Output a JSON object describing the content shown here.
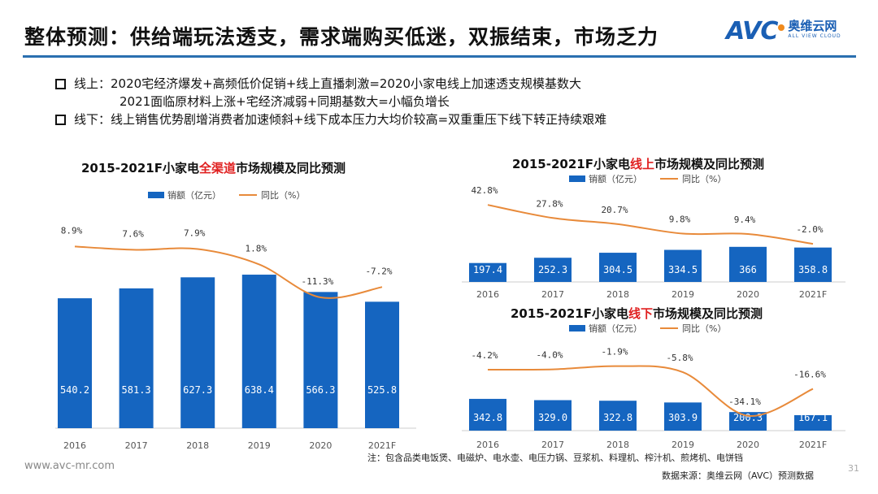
{
  "header": {
    "title": "整体预测：供给端玩法透支，需求端购买低迷，双振结束，市场乏力",
    "logo": {
      "brand": "AVC",
      "cn": "奥维云网",
      "en": "ALL VIEW CLOUD"
    }
  },
  "bullets": [
    {
      "lines": [
        "线上：2020宅经济爆发+高频低价促销+线上直播刺激=2020小家电线上加速透支规模基数大",
        "2021面临原材料上涨+宅经济减弱+同期基数大=小幅负增长"
      ]
    },
    {
      "lines": [
        "线下：线上销售优势剧增消费者加速倾斜+线下成本压力大均价较高=双重重压下线下转正持续艰难"
      ]
    }
  ],
  "colors": {
    "bar": "#1565c0",
    "line": "#e88a3a",
    "accent_red": "#e02020",
    "rule": "#2a6fb0"
  },
  "chart_data": [
    {
      "type": "bar+line",
      "title_pre": "2015-2021F小家电",
      "title_red": "全渠道",
      "title_post": "市场规模及同比预测",
      "legend": [
        "销额（亿元）",
        "同比（%）"
      ],
      "categories": [
        "2016",
        "2017",
        "2018",
        "2019",
        "2020",
        "2021F"
      ],
      "series": [
        {
          "name": "销额（亿元）",
          "type": "bar",
          "values": [
            540.2,
            581.3,
            627.3,
            638.4,
            566.3,
            525.8
          ],
          "labels": [
            "540.2",
            "581.3",
            "627.3",
            "638.4",
            "566.3",
            "525.8"
          ]
        },
        {
          "name": "同比（%）",
          "type": "line",
          "values": [
            8.9,
            7.6,
            7.9,
            1.8,
            -11.3,
            -7.2
          ],
          "labels": [
            "8.9%",
            "7.6%",
            "7.9%",
            "1.8%",
            "-11.3%",
            "-7.2%"
          ]
        }
      ]
    },
    {
      "type": "bar+line",
      "title_pre": "2015-2021F小家电",
      "title_red": "线上",
      "title_post": "市场规模及同比预测",
      "legend": [
        "销额（亿元）",
        "同比（%）"
      ],
      "categories": [
        "2016",
        "2017",
        "2018",
        "2019",
        "2020",
        "2021F"
      ],
      "series": [
        {
          "name": "销额（亿元）",
          "type": "bar",
          "values": [
            197.4,
            252.3,
            304.5,
            334.5,
            366,
            358.8
          ],
          "labels": [
            "197.4",
            "252.3",
            "304.5",
            "334.5",
            "366",
            "358.8"
          ]
        },
        {
          "name": "同比（%）",
          "type": "line",
          "values": [
            42.8,
            27.8,
            20.7,
            9.8,
            9.4,
            -2.0
          ],
          "labels": [
            "42.8%",
            "27.8%",
            "20.7%",
            "9.8%",
            "9.4%",
            "-2.0%"
          ]
        }
      ]
    },
    {
      "type": "bar+line",
      "title_pre": "2015-2021F小家电",
      "title_red": "线下",
      "title_post": "市场规模及同比预测",
      "legend": [
        "销额（亿元）",
        "同比（%）"
      ],
      "categories": [
        "2016",
        "2017",
        "2018",
        "2019",
        "2020",
        "2021F"
      ],
      "series": [
        {
          "name": "销额（亿元）",
          "type": "bar",
          "values": [
            342.8,
            329.0,
            322.8,
            303.9,
            200.3,
            167.1
          ],
          "labels": [
            "342.8",
            "329.0",
            "322.8",
            "303.9",
            "200.3",
            "167.1"
          ]
        },
        {
          "name": "同比（%）",
          "type": "line",
          "values": [
            -4.2,
            -4.0,
            -1.9,
            -5.8,
            -34.1,
            -16.6
          ],
          "labels": [
            "-4.2%",
            "-4.0%",
            "-1.9%",
            "-5.8%",
            "-34.1%",
            "-16.6%"
          ]
        }
      ]
    }
  ],
  "footer": {
    "note": "注：包含品类电饭煲、电磁炉、电水壶、电压力锅、豆浆机、料理机、榨汁机、煎烤机、电饼铛",
    "source": "数据来源：奥维云网（AVC）预测数据",
    "site": "www.avc-mr.com",
    "page": "31"
  }
}
